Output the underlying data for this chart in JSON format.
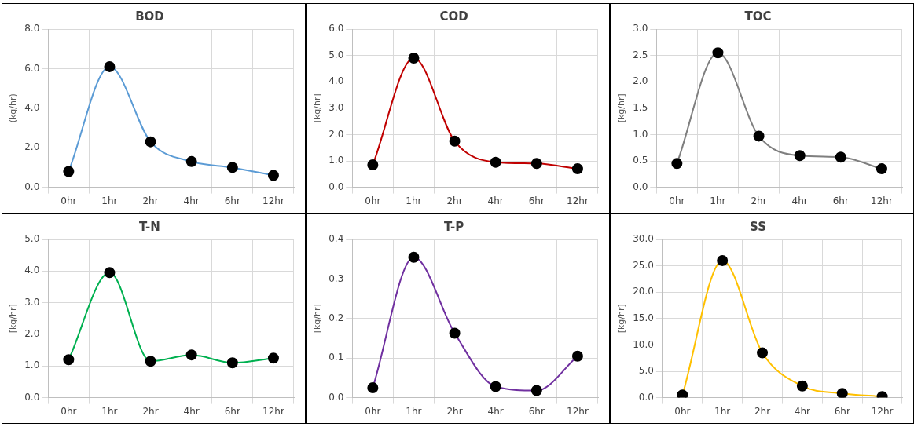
{
  "chart_data": [
    {
      "type": "line",
      "title": "BOD",
      "ylabel": "(kg/hr)",
      "categories": [
        "0hr",
        "1hr",
        "2hr",
        "4hr",
        "6hr",
        "12hr"
      ],
      "series": [
        {
          "color": "#5b9bd5",
          "values": [
            0.8,
            6.1,
            2.3,
            1.3,
            1.0,
            0.6
          ]
        }
      ],
      "ylim": [
        0,
        8
      ],
      "yticks": [
        {
          "value": 0,
          "label": "0.0"
        },
        {
          "value": 2,
          "label": "2.0"
        },
        {
          "value": 4,
          "label": "4.0"
        },
        {
          "value": 6,
          "label": "6.0"
        },
        {
          "value": 8,
          "label": "8.0"
        }
      ],
      "grid": true,
      "marker": "circle",
      "legend": false
    },
    {
      "type": "line",
      "title": "COD",
      "ylabel": "[kg/hr]",
      "categories": [
        "0hr",
        "1hr",
        "2hr",
        "4hr",
        "6hr",
        "12hr"
      ],
      "series": [
        {
          "color": "#c00000",
          "values": [
            0.85,
            4.9,
            1.75,
            0.95,
            0.9,
            0.7
          ]
        }
      ],
      "ylim": [
        0,
        6
      ],
      "yticks": [
        {
          "value": 0,
          "label": "0.0"
        },
        {
          "value": 1,
          "label": "1.0"
        },
        {
          "value": 2,
          "label": "2.0"
        },
        {
          "value": 3,
          "label": "3.0"
        },
        {
          "value": 4,
          "label": "4.0"
        },
        {
          "value": 5,
          "label": "5.0"
        },
        {
          "value": 6,
          "label": "6.0"
        }
      ],
      "grid": true,
      "marker": "circle",
      "legend": false
    },
    {
      "type": "line",
      "title": "TOC",
      "ylabel": "[kg/hr]",
      "categories": [
        "0hr",
        "1hr",
        "2hr",
        "4hr",
        "6hr",
        "12hr"
      ],
      "series": [
        {
          "color": "#7f7f7f",
          "values": [
            0.45,
            2.55,
            0.97,
            0.6,
            0.57,
            0.35
          ]
        }
      ],
      "ylim": [
        0,
        3
      ],
      "yticks": [
        {
          "value": 0,
          "label": "0.0"
        },
        {
          "value": 0.5,
          "label": "0.5"
        },
        {
          "value": 1,
          "label": "1.0"
        },
        {
          "value": 1.5,
          "label": "1.5"
        },
        {
          "value": 2,
          "label": "2.0"
        },
        {
          "value": 2.5,
          "label": "2.5"
        },
        {
          "value": 3,
          "label": "3.0"
        }
      ],
      "grid": true,
      "marker": "circle",
      "legend": false
    },
    {
      "type": "line",
      "title": "T-N",
      "ylabel": "[kg/hr]",
      "categories": [
        "0hr",
        "1hr",
        "2hr",
        "4hr",
        "6hr",
        "12hr"
      ],
      "series": [
        {
          "color": "#00b050",
          "values": [
            1.2,
            3.95,
            1.15,
            1.35,
            1.1,
            1.25
          ]
        }
      ],
      "ylim": [
        0,
        5
      ],
      "yticks": [
        {
          "value": 0,
          "label": "0.0"
        },
        {
          "value": 1,
          "label": "1.0"
        },
        {
          "value": 2,
          "label": "2.0"
        },
        {
          "value": 3,
          "label": "3.0"
        },
        {
          "value": 4,
          "label": "4.0"
        },
        {
          "value": 5,
          "label": "5.0"
        }
      ],
      "grid": true,
      "marker": "circle",
      "legend": false
    },
    {
      "type": "line",
      "title": "T-P",
      "ylabel": "[kg/hr]",
      "categories": [
        "0hr",
        "1hr",
        "2hr",
        "4hr",
        "6hr",
        "12hr"
      ],
      "series": [
        {
          "color": "#7030a0",
          "values": [
            0.025,
            0.355,
            0.163,
            0.028,
            0.018,
            0.105
          ]
        }
      ],
      "ylim": [
        0,
        0.4
      ],
      "yticks": [
        {
          "value": 0,
          "label": "0.0"
        },
        {
          "value": 0.1,
          "label": "0.1"
        },
        {
          "value": 0.2,
          "label": "0.2"
        },
        {
          "value": 0.3,
          "label": "0.3"
        },
        {
          "value": 0.4,
          "label": "0.4"
        }
      ],
      "grid": true,
      "marker": "circle",
      "legend": false
    },
    {
      "type": "line",
      "title": "SS",
      "ylabel": "[kg/hr]",
      "categories": [
        "0hr",
        "1hr",
        "2hr",
        "4hr",
        "6hr",
        "12hr"
      ],
      "series": [
        {
          "color": "#ffc000",
          "values": [
            0.5,
            26,
            8.5,
            2.2,
            0.8,
            0.2
          ]
        }
      ],
      "ylim": [
        0,
        30
      ],
      "yticks": [
        {
          "value": 0,
          "label": "0.0"
        },
        {
          "value": 5,
          "label": "5.0"
        },
        {
          "value": 10,
          "label": "10.0"
        },
        {
          "value": 15,
          "label": "15.0"
        },
        {
          "value": 20,
          "label": "20.0"
        },
        {
          "value": 25,
          "label": "25.0"
        },
        {
          "value": 30,
          "label": "30.0"
        }
      ],
      "grid": true,
      "marker": "circle",
      "legend": false
    }
  ]
}
